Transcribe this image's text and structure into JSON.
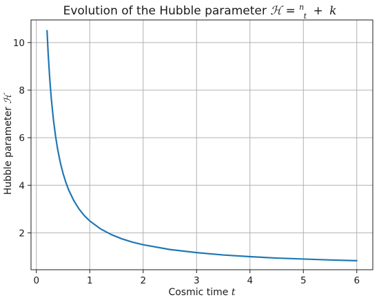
{
  "chart_data": {
    "type": "line",
    "title_prefix": "Evolution of the Hubble parameter",
    "title_math": {
      "lhs": "ℋ",
      "eq": "=",
      "num": "n",
      "den": "t",
      "plus": "+",
      "k": "k"
    },
    "xlabel_text": "Cosmic time",
    "xlabel_symbol": "t",
    "ylabel_text": "Hubble parameter",
    "ylabel_symbol": "ℋ",
    "xlim": [
      -0.1,
      6.3
    ],
    "ylim": [
      0.45,
      10.95
    ],
    "xticks": [
      0,
      1,
      2,
      3,
      4,
      5,
      6
    ],
    "yticks": [
      2,
      4,
      6,
      8,
      10
    ],
    "grid": true,
    "line_color": "#1f77b4",
    "series": [
      {
        "x": [
          0.2,
          0.22,
          0.25,
          0.28,
          0.32,
          0.36,
          0.4,
          0.45,
          0.5,
          0.55,
          0.6,
          0.7,
          0.8,
          0.9,
          1.0,
          1.2,
          1.4,
          1.6,
          1.8,
          2.0,
          2.5,
          3.0,
          3.5,
          4.0,
          4.5,
          5.0,
          5.5,
          6.0
        ],
        "y": [
          10.5,
          9.59,
          8.5,
          7.64,
          6.75,
          6.06,
          5.5,
          4.94,
          4.5,
          4.14,
          3.83,
          3.36,
          3.0,
          2.72,
          2.5,
          2.17,
          1.93,
          1.75,
          1.61,
          1.5,
          1.3,
          1.17,
          1.07,
          1.0,
          0.94,
          0.9,
          0.86,
          0.83
        ]
      }
    ]
  }
}
